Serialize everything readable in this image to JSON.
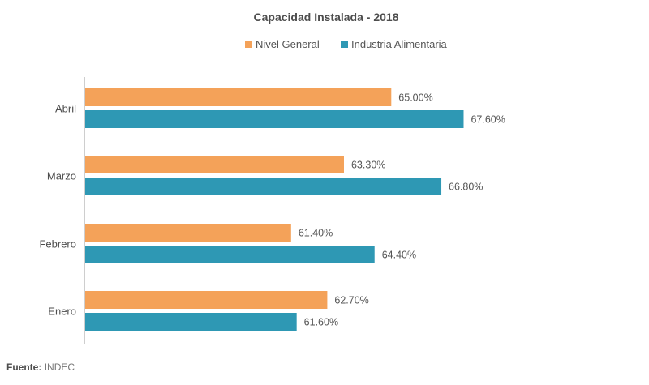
{
  "colors": {
    "nivel_general": "#F4A259",
    "industria": "#2E98B4",
    "axis": "#9e9e9e"
  },
  "source": {
    "label": "Fuente:",
    "value": "INDEC"
  },
  "chart_data": {
    "type": "bar",
    "orientation": "horizontal",
    "title": "Capacidad Instalada - 2018",
    "categories": [
      "Abril",
      "Marzo",
      "Febrero",
      "Enero"
    ],
    "series": [
      {
        "name": "Nivel General",
        "values": [
          65.0,
          63.3,
          61.4,
          62.7
        ],
        "labels": [
          "65.00%",
          "63.30%",
          "61.40%",
          "62.70%"
        ]
      },
      {
        "name": "Industria Alimentaria",
        "values": [
          67.6,
          66.8,
          64.4,
          61.6
        ],
        "labels": [
          "67.60%",
          "66.80%",
          "64.40%",
          "61.60%"
        ]
      }
    ],
    "xlim": [
      54.0,
      69.0
    ],
    "legend": "top-center",
    "grid": false
  }
}
